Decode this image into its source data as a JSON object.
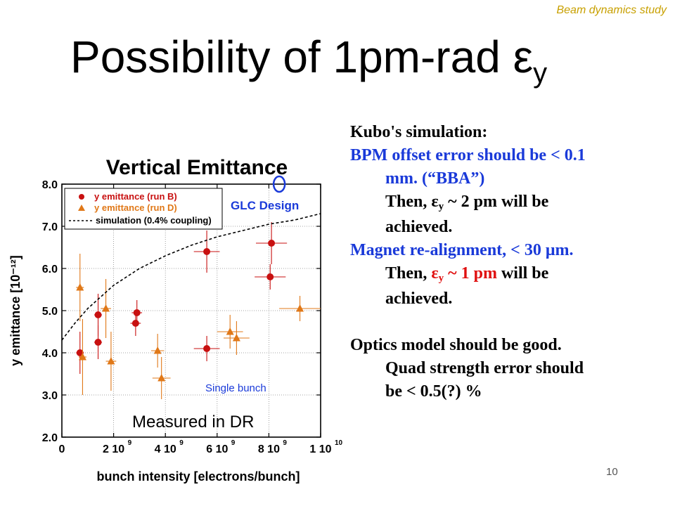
{
  "header_tag": "Beam dynamics study",
  "title": {
    "main": "Possibility of 1pm-rad ",
    "symbol": "ε",
    "subscript": "y"
  },
  "right_text": {
    "heading": "Kubo's simulation:",
    "bpm_line1": "BPM offset error should be < 0.1",
    "bpm_line2": "mm. (“BBA”)",
    "then1_pre": "Then, ",
    "then1_eps": "ε",
    "then1_sub": "y",
    "then1_post": " ~ 2 pm will be",
    "achieved1": "achieved.",
    "magnet_line": "Magnet re-alignment, < 30 μm.",
    "then2_pre": "Then, ",
    "then2_eps": "ε",
    "then2_sub": "y",
    "then2_val": " ~ 1 pm",
    "then2_post": " will be",
    "achieved2": "achieved.",
    "optics_line": "Optics model should be good.",
    "quad_line1": "Quad strength error should",
    "quad_line2": "be < 0.5(?) %"
  },
  "slide_number": "10",
  "chart_data": {
    "type": "scatter",
    "title": "Vertical Emittance",
    "xlabel": "bunch intensity [electrons/bunch]",
    "ylabel": "y emittance [10⁻¹²]",
    "xlim": [
      0,
      10
    ],
    "ylim": [
      2.0,
      8.0
    ],
    "x_ticks": [
      {
        "value": 0,
        "label": "0"
      },
      {
        "value": 2,
        "label": "2 10",
        "exp": "9"
      },
      {
        "value": 4,
        "label": "4 10",
        "exp": "9"
      },
      {
        "value": 6,
        "label": "6 10",
        "exp": "9"
      },
      {
        "value": 8,
        "label": "8 10",
        "exp": "9"
      },
      {
        "value": 10,
        "label": "1 10",
        "exp": "10"
      }
    ],
    "y_ticks": [
      "2.0",
      "3.0",
      "4.0",
      "5.0",
      "6.0",
      "7.0",
      "8.0"
    ],
    "grid": true,
    "legend_position": "top-left",
    "annotations": {
      "glc_design": "GLC Design",
      "single_bunch": "Single bunch",
      "measured": "Measured in DR"
    },
    "glc_design_point": {
      "x": 8.4,
      "y": 8.0
    },
    "series": [
      {
        "name": "y emittance (run B)",
        "marker": "circle",
        "color": "#c81010",
        "points": [
          {
            "x": 0.7,
            "y": 4.0,
            "xerr": 0.15,
            "yerr": 0.5
          },
          {
            "x": 1.4,
            "y": 4.9,
            "xerr": 0.15,
            "yerr": 0.5
          },
          {
            "x": 1.4,
            "y": 4.25,
            "xerr": 0.15,
            "yerr": 0.4
          },
          {
            "x": 2.9,
            "y": 4.95,
            "xerr": 0.2,
            "yerr": 0.3
          },
          {
            "x": 2.85,
            "y": 4.7,
            "xerr": 0.2,
            "yerr": 0.3
          },
          {
            "x": 5.6,
            "y": 6.4,
            "xerr": 0.5,
            "yerr": 0.5
          },
          {
            "x": 5.6,
            "y": 4.1,
            "xerr": 0.5,
            "yerr": 0.3
          },
          {
            "x": 8.1,
            "y": 6.6,
            "xerr": 0.6,
            "yerr": 0.5
          },
          {
            "x": 8.05,
            "y": 5.8,
            "xerr": 0.6,
            "yerr": 0.3
          }
        ]
      },
      {
        "name": "y emittance (run D)",
        "marker": "triangle",
        "color": "#e07818",
        "points": [
          {
            "x": 0.7,
            "y": 5.55,
            "xerr": 0.15,
            "yerr": 0.8
          },
          {
            "x": 0.8,
            "y": 3.9,
            "xerr": 0.15,
            "yerr": 0.9
          },
          {
            "x": 1.7,
            "y": 5.05,
            "xerr": 0.2,
            "yerr": 0.7
          },
          {
            "x": 1.9,
            "y": 3.8,
            "xerr": 0.2,
            "yerr": 0.7
          },
          {
            "x": 3.7,
            "y": 4.05,
            "xerr": 0.25,
            "yerr": 0.4
          },
          {
            "x": 3.85,
            "y": 3.4,
            "xerr": 0.35,
            "yerr": 0.5
          },
          {
            "x": 6.5,
            "y": 4.5,
            "xerr": 0.5,
            "yerr": 0.4
          },
          {
            "x": 6.75,
            "y": 4.35,
            "xerr": 0.5,
            "yerr": 0.4
          },
          {
            "x": 9.2,
            "y": 5.05,
            "xerr": 0.8,
            "yerr": 0.3
          }
        ]
      },
      {
        "name": "simulation (0.4% coupling)",
        "type": "line",
        "style": "dashed",
        "color": "#000000",
        "points": [
          {
            "x": 0.0,
            "y": 4.3
          },
          {
            "x": 0.5,
            "y": 4.7
          },
          {
            "x": 1.0,
            "y": 5.05
          },
          {
            "x": 2.0,
            "y": 5.6
          },
          {
            "x": 3.0,
            "y": 6.0
          },
          {
            "x": 4.0,
            "y": 6.3
          },
          {
            "x": 5.0,
            "y": 6.55
          },
          {
            "x": 6.0,
            "y": 6.75
          },
          {
            "x": 7.0,
            "y": 6.9
          },
          {
            "x": 8.0,
            "y": 7.05
          },
          {
            "x": 9.0,
            "y": 7.15
          },
          {
            "x": 10.0,
            "y": 7.3
          }
        ]
      }
    ]
  }
}
